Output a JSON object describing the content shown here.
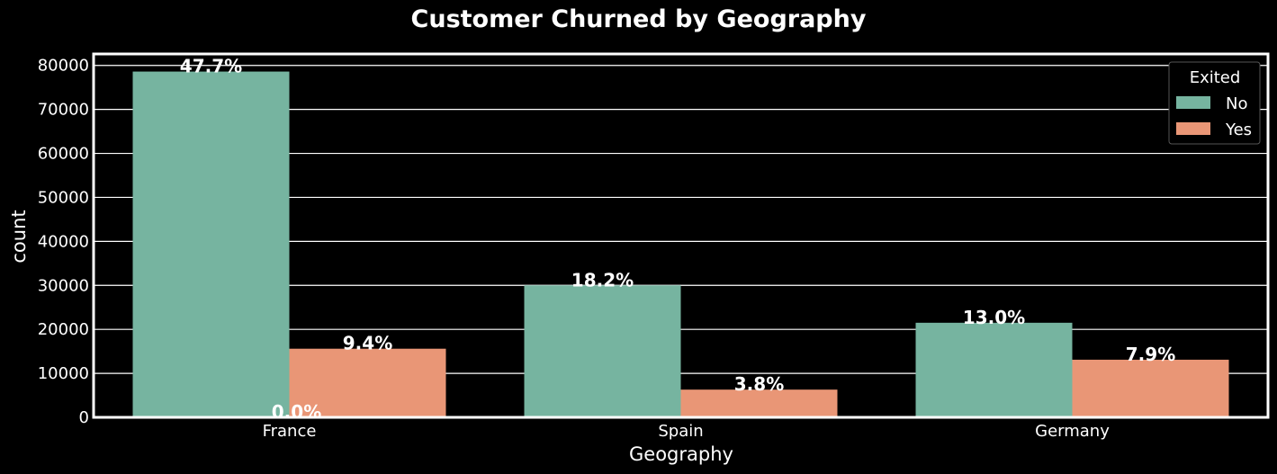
{
  "chart_data": {
    "type": "bar",
    "title": "Customer Churned by Geography",
    "xlabel": "Geography",
    "ylabel": "count",
    "categories": [
      "France",
      "Spain",
      "Germany"
    ],
    "series": [
      {
        "name": "No",
        "color": "#76b4a0",
        "values": [
          78600,
          30000,
          21500
        ],
        "labels": [
          "47.7%",
          "18.2%",
          "13.0%"
        ]
      },
      {
        "name": "Yes",
        "color": "#e99676",
        "values": [
          15600,
          6300,
          13100
        ],
        "labels": [
          "9.4%",
          "3.8%",
          "7.9%"
        ]
      }
    ],
    "zero_label": "0.0%",
    "yticks": [
      0,
      10000,
      20000,
      30000,
      40000,
      50000,
      60000,
      70000,
      80000
    ],
    "ylim": [
      0,
      82600
    ],
    "grid": true,
    "legend": {
      "title": "Exited",
      "placement": "top-right"
    }
  }
}
